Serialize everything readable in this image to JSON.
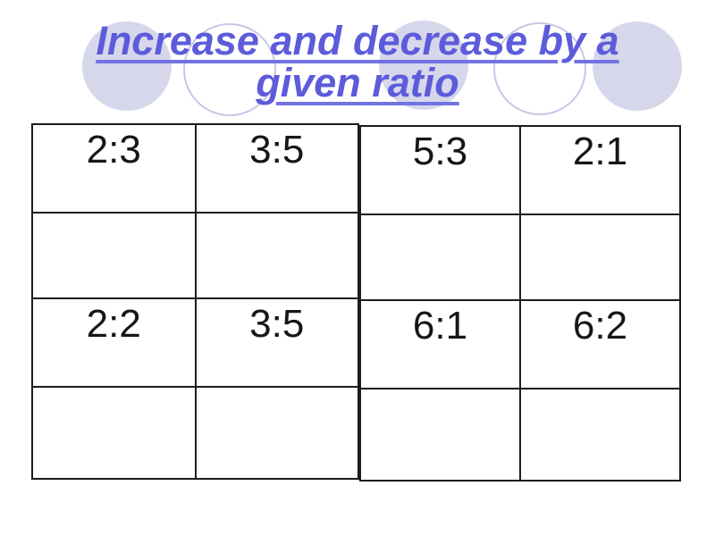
{
  "slide": {
    "title": {
      "line1": "Increase and decrease by a",
      "line2": "given ratio",
      "full": "Increase and decrease by a given ratio"
    }
  },
  "colors": {
    "background": "#ffffff",
    "title_text": "#5c5cdb",
    "title_underline": "#7272e2",
    "circle_fill": "#d7d7ec",
    "circle_outline": "#c7c7e6",
    "table_border": "#1c1c1c",
    "cell_text": "#161616"
  },
  "decorations": {
    "circles": [
      {
        "style": "filled"
      },
      {
        "style": "outline"
      },
      {
        "style": "filled"
      },
      {
        "style": "outline"
      },
      {
        "style": "filled"
      }
    ]
  },
  "table": {
    "columns": 4,
    "rows": [
      [
        "2:3",
        "3:5",
        "5:3",
        "2:1"
      ],
      [
        "",
        "",
        "",
        ""
      ],
      [
        "2:2",
        "3:5",
        "6:1",
        "6:2"
      ],
      [
        "",
        "",
        "",
        ""
      ]
    ]
  }
}
